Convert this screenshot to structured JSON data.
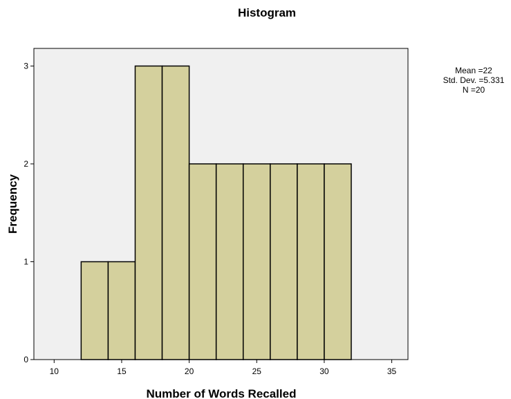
{
  "chart_data": {
    "type": "bar",
    "subtype": "histogram",
    "title": "Histogram",
    "xlabel": "Number of Words Recalled",
    "ylabel": "Frequency",
    "xlim": [
      8.5,
      36.2
    ],
    "ylim": [
      0,
      3.18
    ],
    "x_ticks": [
      10,
      15,
      20,
      25,
      30,
      35
    ],
    "y_ticks": [
      0,
      1,
      2,
      3
    ],
    "bin_width": 2,
    "bins": [
      {
        "start": 12,
        "end": 14,
        "count": 1
      },
      {
        "start": 14,
        "end": 16,
        "count": 1
      },
      {
        "start": 16,
        "end": 18,
        "count": 3
      },
      {
        "start": 18,
        "end": 20,
        "count": 3
      },
      {
        "start": 20,
        "end": 22,
        "count": 2
      },
      {
        "start": 22,
        "end": 24,
        "count": 2
      },
      {
        "start": 24,
        "end": 26,
        "count": 2
      },
      {
        "start": 26,
        "end": 28,
        "count": 2
      },
      {
        "start": 28,
        "end": 30,
        "count": 2
      },
      {
        "start": 30,
        "end": 32,
        "count": 2
      }
    ],
    "stats": {
      "mean_text": "Mean =22",
      "sd_text": "Std. Dev. =5.331",
      "n_text": "N =20"
    },
    "grid": false,
    "colors": {
      "bar_fill": "#d4d09d",
      "bar_stroke": "#000000",
      "plot_background": "#f0f0f0"
    }
  }
}
